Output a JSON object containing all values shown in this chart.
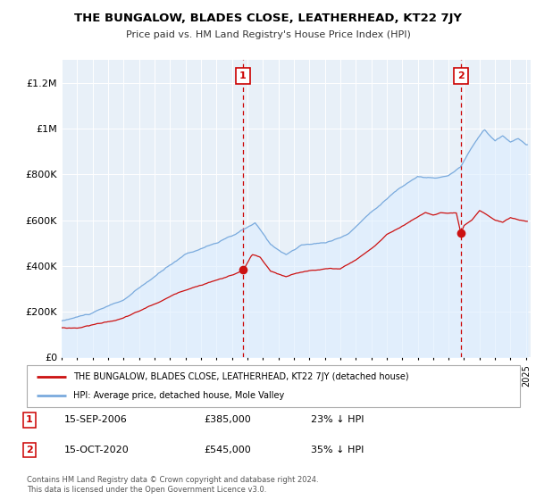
{
  "title": "THE BUNGALOW, BLADES CLOSE, LEATHERHEAD, KT22 7JY",
  "subtitle": "Price paid vs. HM Land Registry's House Price Index (HPI)",
  "legend_line1": "THE BUNGALOW, BLADES CLOSE, LEATHERHEAD, KT22 7JY (detached house)",
  "legend_line2": "HPI: Average price, detached house, Mole Valley",
  "annotation1_label": "1",
  "annotation1_date": "15-SEP-2006",
  "annotation1_price": "£385,000",
  "annotation1_hpi": "23% ↓ HPI",
  "annotation1_year": 2006.71,
  "annotation1_price_val": 385000,
  "annotation2_label": "2",
  "annotation2_date": "15-OCT-2020",
  "annotation2_price": "£545,000",
  "annotation2_hpi": "35% ↓ HPI",
  "annotation2_year": 2020.79,
  "annotation2_price_val": 545000,
  "footer": "Contains HM Land Registry data © Crown copyright and database right 2024.\nThis data is licensed under the Open Government Licence v3.0.",
  "hpi_color": "#7aaadd",
  "hpi_fill_color": "#ddeeff",
  "price_color": "#cc1111",
  "annotation_color": "#cc0000",
  "ylim": [
    0,
    1300000
  ],
  "yticks": [
    0,
    200000,
    400000,
    600000,
    800000,
    1000000,
    1200000
  ],
  "ytick_labels": [
    "£0",
    "£200K",
    "£400K",
    "£600K",
    "£800K",
    "£1M",
    "£1.2M"
  ],
  "background_color": "#ffffff",
  "plot_bg_color": "#e8f0f8",
  "grid_color": "#ffffff"
}
